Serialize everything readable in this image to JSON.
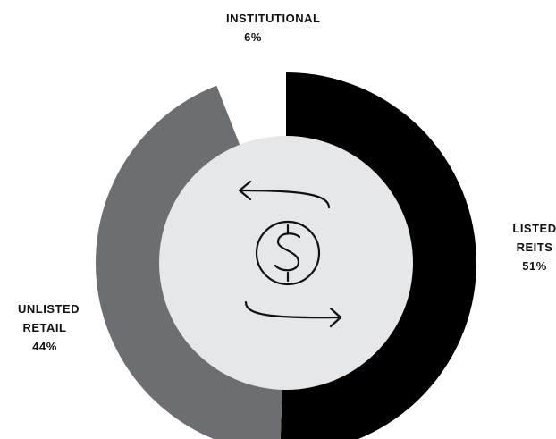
{
  "chart_data": {
    "type": "donut",
    "categories": [
      "LISTED REITS",
      "UNLISTED RETAIL",
      "INSTITUTIONAL"
    ],
    "values": [
      51,
      44,
      6
    ],
    "value_labels": [
      "51%",
      "44%",
      "6%"
    ],
    "colors": [
      "#000000",
      "#6d6e71",
      "#ffffff"
    ]
  }
}
